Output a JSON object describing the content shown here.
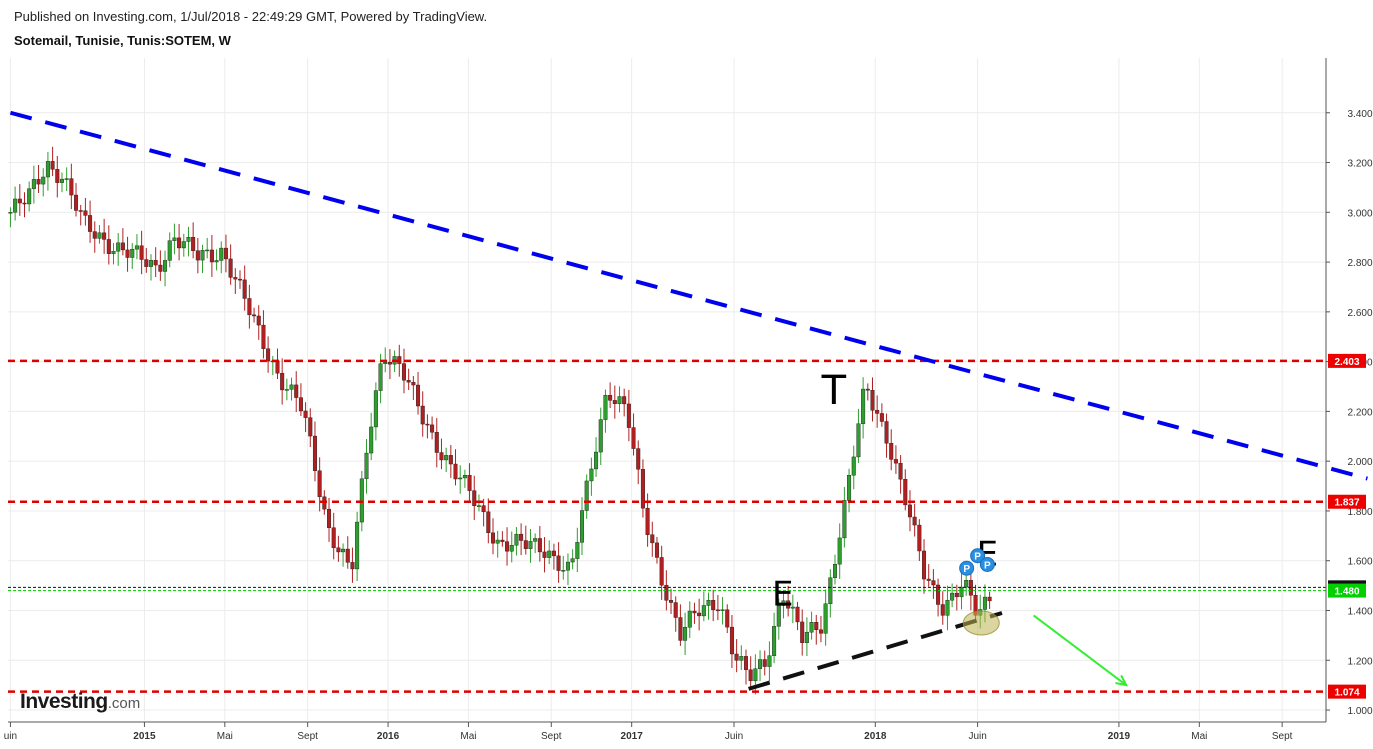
{
  "header": {
    "published": "Published on Investing.com, 1/Jul/2018 - 22:49:29 GMT, Powered by TradingView.",
    "symbol": "Sotemail, Tunisie, Tunis:SOTEM, W"
  },
  "logo": {
    "main": "Investing",
    "suffix": ".com"
  },
  "chart_data": {
    "type": "candlestick",
    "ylim": [
      0.96,
      3.62
    ],
    "y_ticks": [
      "1.000",
      "1.200",
      "1.400",
      "1.600",
      "1.800",
      "2.000",
      "2.200",
      "2.400",
      "2.600",
      "2.800",
      "3.000",
      "3.200",
      "3.400"
    ],
    "x_ticks": [
      {
        "label": "uin",
        "t": 2014.45
      },
      {
        "label": "2015",
        "t": 2015.0
      },
      {
        "label": "Mai",
        "t": 2015.33
      },
      {
        "label": "Sept",
        "t": 2015.67
      },
      {
        "label": "2016",
        "t": 2016.0
      },
      {
        "label": "Mai",
        "t": 2016.33
      },
      {
        "label": "Sept",
        "t": 2016.67
      },
      {
        "label": "2017",
        "t": 2017.0
      },
      {
        "label": "Juin",
        "t": 2017.42
      },
      {
        "label": "2018",
        "t": 2018.0
      },
      {
        "label": "Juin",
        "t": 2018.42
      },
      {
        "label": "2019",
        "t": 2019.0
      },
      {
        "label": "Mai",
        "t": 2019.33
      },
      {
        "label": "Sept",
        "t": 2019.67
      }
    ],
    "price_waypoints": [
      [
        2014.45,
        3.0
      ],
      [
        2014.52,
        3.05
      ],
      [
        2014.6,
        3.2
      ],
      [
        2014.66,
        3.15
      ],
      [
        2014.75,
        2.95
      ],
      [
        2014.9,
        2.85
      ],
      [
        2015.05,
        2.78
      ],
      [
        2015.12,
        2.9
      ],
      [
        2015.22,
        2.82
      ],
      [
        2015.32,
        2.85
      ],
      [
        2015.42,
        2.62
      ],
      [
        2015.55,
        2.35
      ],
      [
        2015.65,
        2.2
      ],
      [
        2015.75,
        1.75
      ],
      [
        2015.85,
        1.55
      ],
      [
        2015.92,
        2.1
      ],
      [
        2015.98,
        2.45
      ],
      [
        2016.05,
        2.38
      ],
      [
        2016.15,
        2.15
      ],
      [
        2016.3,
        1.92
      ],
      [
        2016.45,
        1.68
      ],
      [
        2016.55,
        1.66
      ],
      [
        2016.65,
        1.65
      ],
      [
        2016.75,
        1.55
      ],
      [
        2016.82,
        1.9
      ],
      [
        2016.9,
        2.3
      ],
      [
        2016.98,
        2.2
      ],
      [
        2017.05,
        1.78
      ],
      [
        2017.12,
        1.55
      ],
      [
        2017.2,
        1.3
      ],
      [
        2017.28,
        1.4
      ],
      [
        2017.36,
        1.45
      ],
      [
        2017.42,
        1.22
      ],
      [
        2017.48,
        1.12
      ],
      [
        2017.55,
        1.2
      ],
      [
        2017.62,
        1.48
      ],
      [
        2017.7,
        1.28
      ],
      [
        2017.78,
        1.35
      ],
      [
        2017.88,
        1.85
      ],
      [
        2017.96,
        2.3
      ],
      [
        2018.05,
        2.1
      ],
      [
        2018.12,
        1.85
      ],
      [
        2018.2,
        1.55
      ],
      [
        2018.28,
        1.42
      ],
      [
        2018.36,
        1.5
      ],
      [
        2018.42,
        1.38
      ],
      [
        2018.48,
        1.48
      ]
    ],
    "trendlines": [
      {
        "type": "dashed",
        "color": "#0000ee",
        "from": [
          2014.45,
          3.4
        ],
        "to": [
          2020.02,
          1.93
        ]
      },
      {
        "type": "dashed",
        "color": "#111111",
        "from": [
          2017.48,
          1.085
        ],
        "to": [
          2018.52,
          1.39
        ]
      }
    ],
    "horizontal_levels": [
      {
        "value": 2.403,
        "label": "2.403",
        "color": "#e00000"
      },
      {
        "value": 1.837,
        "label": "1.837",
        "color": "#e00000"
      },
      {
        "value": 1.074,
        "label": "1.074",
        "color": "#e00000"
      },
      {
        "value": 1.493,
        "label": "1.493",
        "color": "#111111"
      },
      {
        "value": 1.48,
        "label": "1.480",
        "color": "#00c800"
      }
    ],
    "annotations": [
      {
        "text": "T",
        "t": 2017.83,
        "value": 2.23
      },
      {
        "text": "E",
        "t": 2017.62,
        "value": 1.42
      },
      {
        "text": "E",
        "t": 2018.46,
        "value": 1.58
      }
    ],
    "markers": [
      {
        "text": "P",
        "t": 2018.375,
        "value": 1.57
      },
      {
        "text": "P",
        "t": 2018.42,
        "value": 1.62
      },
      {
        "text": "P",
        "t": 2018.46,
        "value": 1.585
      }
    ],
    "forecast_arrow": {
      "color": "#33ee33",
      "from": [
        2018.65,
        1.38
      ],
      "to": [
        2019.03,
        1.1
      ]
    },
    "highlight_ellipse": {
      "t": 2018.435,
      "value": 1.35
    },
    "colors": {
      "up": "#2e9e2e",
      "down": "#b02020",
      "grid": "#ececec"
    }
  }
}
